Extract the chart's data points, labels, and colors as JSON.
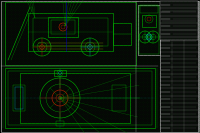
{
  "bg_color": "#050805",
  "green": "#00bb00",
  "green2": "#00dd00",
  "cyan": "#00bbbb",
  "red": "#cc2200",
  "yellow": "#bbbb00",
  "white": "#cccccc",
  "blue": "#0000cc",
  "magenta": "#cc00cc",
  "dot_color": "#003300",
  "fig_width": 2.0,
  "fig_height": 1.33,
  "dpi": 100
}
